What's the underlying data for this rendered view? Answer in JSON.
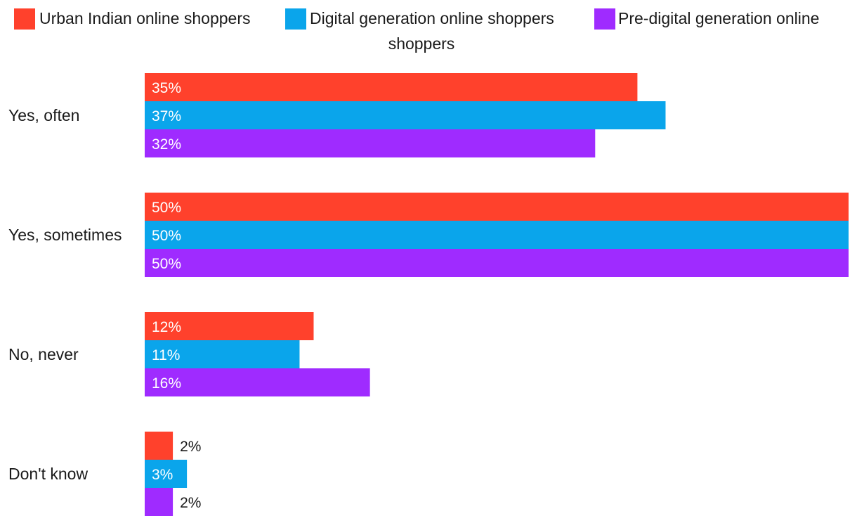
{
  "chart_data": {
    "type": "bar",
    "orientation": "horizontal",
    "title": "",
    "xlabel": "",
    "ylabel": "",
    "xlim": [
      0,
      50
    ],
    "grid": false,
    "legend_position": "top",
    "unit_suffix": "%",
    "categories": [
      "Yes, often",
      "Yes, sometimes",
      "No, never",
      "Don't know"
    ],
    "series": [
      {
        "name": "Urban Indian online shoppers",
        "color": "#FF412C",
        "values": [
          35,
          50,
          12,
          2
        ]
      },
      {
        "name": "Digital generation online shoppers",
        "color": "#0AA5EB",
        "values": [
          37,
          50,
          11,
          3
        ]
      },
      {
        "name": "Pre-digital generation online shoppers",
        "color": "#9F2BFF",
        "values": [
          32,
          50,
          16,
          2
        ]
      }
    ],
    "legend_wrapped_lines": {
      "line1_tail": "Pre-digital generation online",
      "line2": "shoppers"
    }
  }
}
